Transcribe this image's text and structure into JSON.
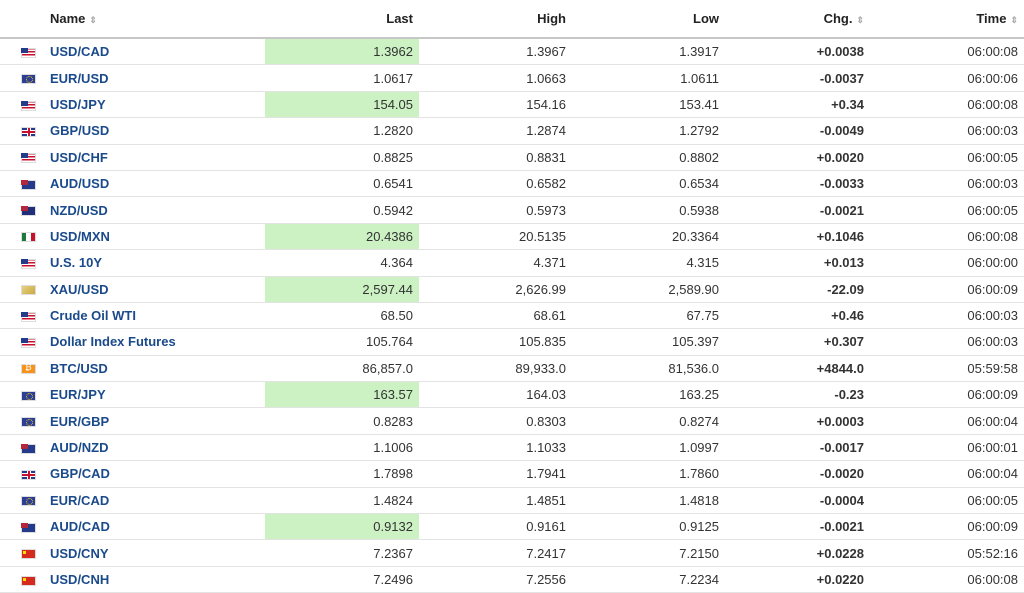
{
  "header": {
    "name": "Name",
    "last": "Last",
    "high": "High",
    "low": "Low",
    "chg": "Chg.",
    "time": "Time",
    "sort_icon": "⇕"
  },
  "rows": [
    {
      "flag": "us",
      "name": "USD/CAD",
      "last": "1.3962",
      "high": "1.3967",
      "low": "1.3917",
      "chg": "+0.0038",
      "dir": "pos",
      "time": "06:00:08",
      "highlight": true
    },
    {
      "flag": "eu",
      "name": "EUR/USD",
      "last": "1.0617",
      "high": "1.0663",
      "low": "1.0611",
      "chg": "-0.0037",
      "dir": "neg",
      "time": "06:00:06",
      "highlight": false
    },
    {
      "flag": "us",
      "name": "USD/JPY",
      "last": "154.05",
      "high": "154.16",
      "low": "153.41",
      "chg": "+0.34",
      "dir": "pos",
      "time": "06:00:08",
      "highlight": true
    },
    {
      "flag": "gb",
      "name": "GBP/USD",
      "last": "1.2820",
      "high": "1.2874",
      "low": "1.2792",
      "chg": "-0.0049",
      "dir": "neg",
      "time": "06:00:03",
      "highlight": false
    },
    {
      "flag": "us",
      "name": "USD/CHF",
      "last": "0.8825",
      "high": "0.8831",
      "low": "0.8802",
      "chg": "+0.0020",
      "dir": "pos",
      "time": "06:00:05",
      "highlight": false
    },
    {
      "flag": "au",
      "name": "AUD/USD",
      "last": "0.6541",
      "high": "0.6582",
      "low": "0.6534",
      "chg": "-0.0033",
      "dir": "neg",
      "time": "06:00:03",
      "highlight": false
    },
    {
      "flag": "nz",
      "name": "NZD/USD",
      "last": "0.5942",
      "high": "0.5973",
      "low": "0.5938",
      "chg": "-0.0021",
      "dir": "neg",
      "time": "06:00:05",
      "highlight": false
    },
    {
      "flag": "mx",
      "name": "USD/MXN",
      "last": "20.4386",
      "high": "20.5135",
      "low": "20.3364",
      "chg": "+0.1046",
      "dir": "pos",
      "time": "06:00:08",
      "highlight": true
    },
    {
      "flag": "us",
      "name": "U.S. 10Y",
      "last": "4.364",
      "high": "4.371",
      "low": "4.315",
      "chg": "+0.013",
      "dir": "pos",
      "time": "06:00:00",
      "highlight": false
    },
    {
      "flag": "gold",
      "name": "XAU/USD",
      "last": "2,597.44",
      "high": "2,626.99",
      "low": "2,589.90",
      "chg": "-22.09",
      "dir": "neg",
      "time": "06:00:09",
      "highlight": true
    },
    {
      "flag": "oil",
      "name": "Crude Oil WTI",
      "last": "68.50",
      "high": "68.61",
      "low": "67.75",
      "chg": "+0.46",
      "dir": "pos",
      "time": "06:00:03",
      "highlight": false
    },
    {
      "flag": "us",
      "name": "Dollar Index Futures",
      "last": "105.764",
      "high": "105.835",
      "low": "105.397",
      "chg": "+0.307",
      "dir": "pos",
      "time": "06:00:03",
      "highlight": false
    },
    {
      "flag": "btc",
      "name": "BTC/USD",
      "last": "86,857.0",
      "high": "89,933.0",
      "low": "81,536.0",
      "chg": "+4844.0",
      "dir": "pos",
      "time": "05:59:58",
      "highlight": false
    },
    {
      "flag": "eu",
      "name": "EUR/JPY",
      "last": "163.57",
      "high": "164.03",
      "low": "163.25",
      "chg": "-0.23",
      "dir": "neg",
      "time": "06:00:09",
      "highlight": true
    },
    {
      "flag": "eu",
      "name": "EUR/GBP",
      "last": "0.8283",
      "high": "0.8303",
      "low": "0.8274",
      "chg": "+0.0003",
      "dir": "pos",
      "time": "06:00:04",
      "highlight": false
    },
    {
      "flag": "au",
      "name": "AUD/NZD",
      "last": "1.1006",
      "high": "1.1033",
      "low": "1.0997",
      "chg": "-0.0017",
      "dir": "neg",
      "time": "06:00:01",
      "highlight": false
    },
    {
      "flag": "gb",
      "name": "GBP/CAD",
      "last": "1.7898",
      "high": "1.7941",
      "low": "1.7860",
      "chg": "-0.0020",
      "dir": "neg",
      "time": "06:00:04",
      "highlight": false
    },
    {
      "flag": "eu",
      "name": "EUR/CAD",
      "last": "1.4824",
      "high": "1.4851",
      "low": "1.4818",
      "chg": "-0.0004",
      "dir": "neg",
      "time": "06:00:05",
      "highlight": false
    },
    {
      "flag": "au",
      "name": "AUD/CAD",
      "last": "0.9132",
      "high": "0.9161",
      "low": "0.9125",
      "chg": "-0.0021",
      "dir": "neg",
      "time": "06:00:09",
      "highlight": true
    },
    {
      "flag": "ch",
      "name": "USD/CNY",
      "last": "7.2367",
      "high": "7.2417",
      "low": "7.2150",
      "chg": "+0.0228",
      "dir": "pos",
      "time": "05:52:16",
      "highlight": false
    },
    {
      "flag": "ch",
      "name": "USD/CNH",
      "last": "7.2496",
      "high": "7.2556",
      "low": "7.2234",
      "chg": "+0.0220",
      "dir": "pos",
      "time": "06:00:08",
      "highlight": false
    }
  ],
  "colors": {
    "positive": "#3a9e1a",
    "negative": "#d71f1f",
    "name_link": "#1a4a8b",
    "highlight": "#ccf2c4"
  }
}
